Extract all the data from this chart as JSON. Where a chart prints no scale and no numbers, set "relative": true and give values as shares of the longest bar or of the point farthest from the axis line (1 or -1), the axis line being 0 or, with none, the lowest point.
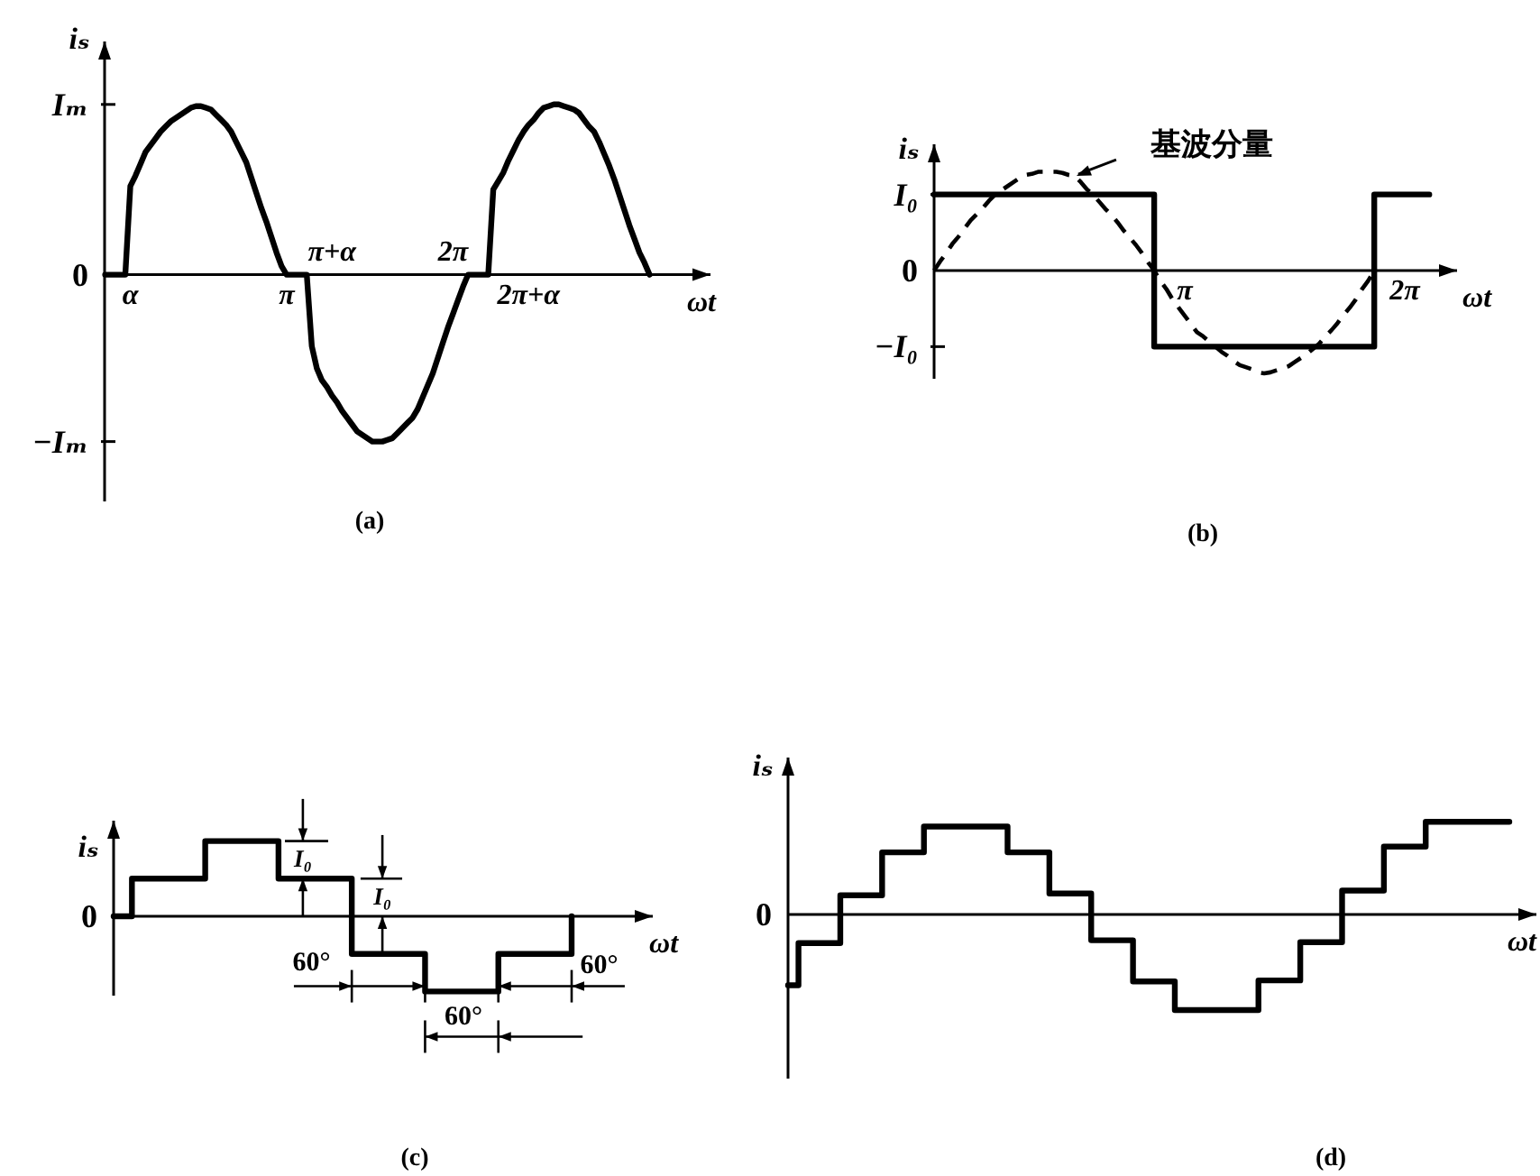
{
  "chart_data": [
    {
      "type": "line",
      "title": "(a)",
      "xlabel": "ωt",
      "ylabel": "iₛ",
      "relative": true,
      "categories": [
        null,
        null,
        null,
        null,
        null,
        "α",
        null,
        null,
        null,
        null,
        null,
        null,
        null,
        null,
        null,
        null,
        null,
        null,
        null,
        null,
        null,
        null,
        null,
        null,
        null,
        null,
        null,
        null,
        null,
        null,
        null,
        null,
        null,
        null,
        null,
        null,
        "π",
        null,
        null,
        null,
        null,
        null,
        null,
        null,
        null,
        "π+α",
        null,
        null,
        null,
        null,
        null,
        null,
        null,
        null,
        null,
        null,
        null,
        null,
        null,
        null,
        null,
        null,
        null,
        null,
        null,
        null,
        null,
        null,
        null,
        "2π",
        null,
        null,
        null,
        null,
        null,
        null,
        null,
        null,
        null,
        null,
        null,
        null,
        null,
        null,
        "2π+α",
        null,
        null,
        null,
        null,
        null,
        null,
        null,
        null,
        null,
        null,
        null,
        null,
        null,
        null,
        null,
        null,
        null,
        null,
        null,
        null,
        null,
        null,
        null,
        null
      ],
      "series": [
        {
          "color": "#000000",
          "values": [
            0,
            0,
            0,
            0,
            0,
            0.52,
            0.58,
            0.65,
            0.72,
            0.76,
            0.8,
            0.84,
            0.87,
            0.9,
            0.92,
            0.94,
            0.96,
            0.98,
            0.99,
            0.99,
            0.98,
            0.97,
            0.94,
            0.91,
            0.88,
            0.84,
            0.78,
            0.72,
            0.66,
            0.57,
            0.48,
            0.39,
            0.31,
            0.22,
            0.13,
            0.05,
            0,
            0,
            0,
            0,
            0,
            -0.42,
            -0.55,
            -0.62,
            -0.66,
            -0.71,
            -0.75,
            -0.8,
            -0.84,
            -0.88,
            -0.92,
            -0.94,
            -0.96,
            -0.98,
            -0.98,
            -0.98,
            -0.97,
            -0.96,
            -0.93,
            -0.9,
            -0.87,
            -0.84,
            -0.79,
            -0.72,
            -0.65,
            -0.58,
            -0.49,
            -0.4,
            -0.31,
            -0.23,
            -0.15,
            -0.07,
            0,
            0,
            0,
            0,
            0,
            0.5,
            0.55,
            0.6,
            0.67,
            0.73,
            0.79,
            0.84,
            0.88,
            0.91,
            0.95,
            0.98,
            0.99,
            1,
            1,
            0.99,
            0.98,
            0.97,
            0.95,
            0.91,
            0.87,
            0.84,
            0.78,
            0.71,
            0.64,
            0.56,
            0.47,
            0.38,
            0.29,
            0.21,
            0.13,
            0.07,
            0
          ]
        }
      ],
      "annotations": [
        "Iₘ",
        "0",
        "−Iₘ"
      ]
    },
    {
      "type": "line",
      "title": "(b)",
      "xlabel": "ωt",
      "ylabel": "iₛ",
      "relative": true,
      "categories": [
        null,
        null,
        null,
        null,
        null,
        null,
        null,
        null,
        null,
        null,
        null,
        null,
        null,
        null,
        null,
        null,
        null,
        null,
        null,
        null,
        null,
        null,
        null,
        null,
        null,
        null,
        null,
        null,
        null,
        null,
        null,
        null,
        null,
        null,
        null,
        null,
        null,
        null,
        null,
        null,
        null,
        "π",
        null,
        null,
        null,
        null,
        null,
        null,
        null,
        null,
        null,
        null,
        null,
        null,
        null,
        null,
        null,
        null,
        null,
        null,
        null,
        null,
        null,
        null,
        null,
        null,
        null,
        null,
        null,
        null,
        null,
        null,
        null,
        null,
        null,
        null,
        null,
        "2π",
        null,
        null,
        null,
        null
      ],
      "series": [
        {
          "type": "step",
          "color": "#000000",
          "values": [
            0.74,
            0.74,
            0.74,
            0.74,
            0.74,
            0.74,
            0.74,
            0.74,
            0.74,
            0.74,
            0.74,
            0.74,
            0.74,
            0.74,
            0.74,
            0.74,
            0.74,
            0.74,
            0.74,
            0.74,
            0.74,
            0.74,
            0.74,
            0.74,
            0.74,
            0.74,
            0.74,
            0.74,
            0.74,
            0.74,
            0.74,
            0.74,
            0.74,
            0.74,
            0.74,
            0.74,
            -0.74,
            -0.74,
            -0.74,
            -0.74,
            -0.74,
            -0.74,
            -0.74,
            -0.74,
            -0.74,
            -0.74,
            -0.74,
            -0.74,
            -0.74,
            -0.74,
            -0.74,
            -0.74,
            -0.74,
            -0.74,
            -0.74,
            -0.74,
            -0.74,
            -0.74,
            -0.74,
            -0.74,
            -0.74,
            -0.74,
            -0.74,
            -0.74,
            -0.74,
            -0.74,
            -0.74,
            -0.74,
            -0.74,
            -0.74,
            -0.74,
            -0.74,
            0.74,
            0.74,
            0.74,
            0.74,
            0.74,
            0.74,
            0.74,
            0.74,
            0.74,
            0.74
          ]
        },
        {
          "name": "基波分量",
          "color": "#000000",
          "line_style": "dashed",
          "values": [
            0,
            0.09,
            0.17,
            0.26,
            0.33,
            0.41,
            0.49,
            0.55,
            0.61,
            0.68,
            0.74,
            0.78,
            0.82,
            0.86,
            0.9,
            0.93,
            0.94,
            0.96,
            0.96,
            0.96,
            0.96,
            0.95,
            0.93,
            0.92,
            0.86,
            0.79,
            0.74,
            0.67,
            0.6,
            0.54,
            0.47,
            0.39,
            0.32,
            0.25,
            0.17,
            0.08,
            0,
            -0.1,
            -0.18,
            -0.28,
            -0.36,
            -0.44,
            -0.52,
            -0.6,
            -0.64,
            -0.69,
            -0.74,
            -0.79,
            -0.83,
            -0.88,
            -0.92,
            -0.94,
            -0.96,
            -0.99,
            -1,
            -0.99,
            -0.97,
            -0.95,
            -0.93,
            -0.89,
            -0.85,
            -0.81,
            -0.76,
            -0.71,
            -0.64,
            -0.58,
            -0.51,
            -0.43,
            -0.36,
            -0.28,
            -0.18,
            -0.1,
            0,
            null,
            null,
            null,
            null,
            null,
            null,
            null,
            null,
            null
          ]
        }
      ],
      "annotations": [
        "I₀",
        "0",
        "−I₀"
      ]
    },
    {
      "type": "step",
      "title": "(c)",
      "xlabel": "ωt",
      "ylabel": "iₛ",
      "relative": true,
      "categories": [
        null,
        null,
        null,
        null,
        null,
        null,
        null,
        null,
        null,
        null,
        null,
        null,
        null,
        null,
        null,
        null,
        null,
        null,
        null,
        null,
        null,
        null,
        null,
        null,
        null,
        null
      ],
      "series": [
        {
          "color": "#000000",
          "values": [
            0,
            0.5,
            0.5,
            0.5,
            0.5,
            1,
            1,
            1,
            1,
            0.5,
            0.5,
            0.5,
            0.5,
            -0.5,
            -0.5,
            -0.5,
            -0.5,
            -1,
            -1,
            -1,
            -1,
            -0.5,
            -0.5,
            -0.5,
            -0.5,
            0
          ]
        }
      ],
      "annotations": [
        "0",
        "I₀",
        "I₀",
        "60°",
        "60°",
        "60°"
      ]
    },
    {
      "type": "step",
      "title": "(d)",
      "xlabel": "ωt",
      "ylabel": "iₛ",
      "relative": true,
      "categories": [
        null,
        null,
        null,
        null,
        null,
        null,
        null,
        null,
        null,
        null,
        null,
        null,
        null,
        null,
        null,
        null,
        null,
        null,
        null,
        null,
        null,
        null,
        null,
        null,
        null,
        null,
        null,
        null,
        null,
        null,
        null,
        null,
        null,
        null,
        null,
        null,
        null,
        null,
        null,
        null,
        null,
        null,
        null,
        null,
        null,
        null,
        null,
        null,
        null,
        null,
        null,
        null,
        null,
        null,
        null,
        null,
        null,
        null,
        null,
        null,
        null,
        null,
        null,
        null,
        null,
        null,
        null,
        null,
        null,
        null
      ],
      "series": [
        {
          "color": "#000000",
          "values": [
            -0.74,
            -0.3,
            -0.3,
            -0.3,
            -0.3,
            0.2,
            0.2,
            0.2,
            0.2,
            0.65,
            0.65,
            0.65,
            0.65,
            0.92,
            0.92,
            0.92,
            0.92,
            0.92,
            0.92,
            0.92,
            0.92,
            0.65,
            0.65,
            0.65,
            0.65,
            0.22,
            0.22,
            0.22,
            0.22,
            -0.27,
            -0.27,
            -0.27,
            -0.27,
            -0.7,
            -0.7,
            -0.7,
            -0.7,
            -1,
            -1,
            -1,
            -1,
            -1,
            -1,
            -1,
            -1,
            -0.69,
            -0.69,
            -0.69,
            -0.69,
            -0.29,
            -0.29,
            -0.29,
            -0.29,
            0.25,
            0.25,
            0.25,
            0.25,
            0.71,
            0.71,
            0.71,
            0.71,
            0.97,
            0.97,
            0.97,
            0.97,
            0.97,
            0.97,
            0.97,
            0.97,
            0.97
          ]
        }
      ],
      "annotations": [
        "0"
      ]
    }
  ]
}
